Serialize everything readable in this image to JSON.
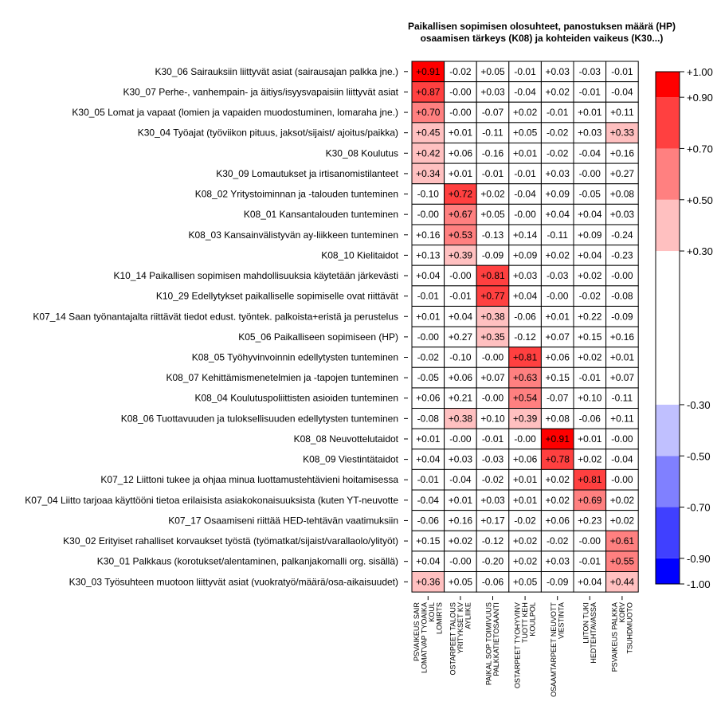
{
  "chart_data": {
    "type": "heatmap",
    "title": [
      "Paikallisen sopimisen olosuhteet, panostuksen määrä (HP)",
      "osaamisen tärkeys (K08) ja kohteiden vaikeus (K30...)"
    ],
    "rows": [
      "K30_06 Sairauksiin liittyvät asiat (sairausajan palkka jne.)",
      "K30_07 Perhe-, vanhempain- ja äitiys/isyysvapaisiin liittyvät asiat",
      "K30_05 Lomat ja vapaat (lomien ja vapaiden muodostuminen, lomaraha jne.)",
      "K30_04 Työajat (työviikon pituus, jaksot/sijaist/ ajoitus/paikka)",
      "K30_08 Koulutus",
      "K30_09 Lomautukset ja irtisanomistilanteet",
      "K08_02 Yritystoiminnan ja -talouden tunteminen",
      "K08_01 Kansantalouden tunteminen",
      "K08_03 Kansainvälistyvän ay-liikkeen tunteminen",
      "K08_10 Kielitaidot",
      "K10_14 Paikallisen sopimisen mahdollisuuksia käytetään järkevästi",
      "K10_29 Edellytykset paikalliselle sopimiselle ovat riittävät",
      "K07_14 Saan työnantajalta riittävät tiedot edust. työntek. palkoista+eristä ja perustelus",
      "K05_06 Paikalliseen sopimiseen (HP)",
      "K08_05 Työhyvinvoinnin edellytysten tunteminen",
      "K08_07 Kehittämismenetelmien ja -tapojen tunteminen",
      "K08_04 Koulutuspoliittisten asioiden tunteminen",
      "K08_06 Tuottavuuden ja tuloksellisuuden edellytysten tunteminen",
      "K08_08 Neuvottelutaidot",
      "K08_09 Viestintätaidot",
      "K07_12 Liittoni tukee ja ohjaa minua luottamustehtävieni hoitamisessa",
      "K07_04 Liitto tarjoaa käyttööni tietoa erilaisista asiakokonaisuuksista (kuten YT-neuvotte",
      "K07_17 Osaamiseni riittää HED-tehtävän vaatimuksiin",
      "K30_02 Erityiset rahalliset korvaukset työstä (työmatkat/sijaist/varallaolo/ylityöt)",
      "K30_01 Palkkaus (korotukset/alentaminen, palkanjakomalli org. sisällä)",
      "K30_03 Työsuhteen muotoon liittyvät asiat (vuokratyö/määrä/osa-aikaisuudet)"
    ],
    "columns": [
      [
        "PSVAIKEUS SAIR",
        "LOMATVAP TYOAIKA",
        "KOUL",
        "LOMIRTS"
      ],
      [
        "OSTARPEET TALOUS",
        "YRITYKSET KV",
        "AYLIIKE"
      ],
      [
        "PAIKAL SOP TOIMIVUUS",
        "PALKKATIETOSAANTI"
      ],
      [
        "OSTARPEET TYOHYVINV",
        "TUOTT KEH",
        "KOULPOL"
      ],
      [
        "OSAAMTARPEET NEUVOTT",
        "VIESTINTA"
      ],
      [
        "LIITON TUKI",
        "HEDTEHTAVASSA"
      ],
      [
        "PSVAIKEUS PALKKA",
        "KORV",
        "TSUHDMUOTO"
      ]
    ],
    "values": [
      [
        0.91,
        -0.02,
        0.05,
        -0.01,
        0.03,
        -0.03,
        -0.01
      ],
      [
        0.87,
        -0.0,
        0.03,
        -0.04,
        0.02,
        -0.01,
        -0.04
      ],
      [
        0.7,
        -0.0,
        -0.07,
        0.02,
        -0.01,
        0.01,
        0.11
      ],
      [
        0.45,
        0.01,
        -0.11,
        0.05,
        -0.02,
        0.03,
        0.33
      ],
      [
        0.42,
        0.06,
        -0.16,
        0.01,
        -0.02,
        -0.04,
        0.16
      ],
      [
        0.34,
        0.01,
        -0.01,
        -0.01,
        0.03,
        -0.0,
        0.27
      ],
      [
        -0.1,
        0.72,
        0.02,
        -0.04,
        0.09,
        -0.05,
        0.08
      ],
      [
        0.0,
        0.67,
        0.05,
        0.0,
        0.04,
        0.04,
        0.03
      ],
      [
        0.16,
        0.53,
        -0.13,
        0.14,
        -0.11,
        0.09,
        -0.24
      ],
      [
        0.13,
        0.39,
        -0.09,
        0.09,
        0.02,
        0.04,
        -0.23
      ],
      [
        0.04,
        -0.0,
        0.81,
        0.03,
        -0.03,
        0.02,
        0.0
      ],
      [
        -0.01,
        -0.01,
        0.77,
        0.04,
        -0.0,
        -0.02,
        -0.08
      ],
      [
        0.01,
        0.04,
        0.38,
        -0.06,
        0.01,
        0.22,
        -0.09
      ],
      [
        -0.0,
        0.27,
        0.35,
        -0.12,
        0.07,
        0.15,
        0.16
      ],
      [
        -0.02,
        -0.1,
        0.0,
        0.81,
        0.06,
        0.02,
        0.01
      ],
      [
        -0.05,
        0.06,
        0.07,
        0.63,
        0.15,
        -0.01,
        0.07
      ],
      [
        0.06,
        0.21,
        -0.0,
        0.54,
        -0.07,
        0.1,
        -0.11
      ],
      [
        -0.08,
        0.38,
        0.1,
        0.39,
        0.08,
        -0.06,
        0.11
      ],
      [
        0.01,
        -0.0,
        -0.01,
        -0.0,
        0.91,
        0.01,
        0.0
      ],
      [
        0.04,
        0.03,
        -0.03,
        0.06,
        0.78,
        0.02,
        -0.04
      ],
      [
        -0.01,
        -0.04,
        -0.02,
        0.01,
        0.02,
        0.81,
        0.0
      ],
      [
        -0.04,
        0.01,
        0.03,
        0.01,
        0.02,
        0.69,
        0.02
      ],
      [
        -0.06,
        0.16,
        0.17,
        -0.02,
        0.06,
        0.23,
        0.02
      ],
      [
        0.15,
        0.02,
        -0.12,
        0.02,
        -0.02,
        0.0,
        0.61
      ],
      [
        0.04,
        0.0,
        -0.2,
        0.02,
        0.03,
        -0.01,
        0.55
      ],
      [
        0.36,
        0.05,
        -0.06,
        0.05,
        -0.09,
        0.04,
        0.44
      ]
    ],
    "legend": {
      "placement": "right",
      "breaks": [
        -1.0,
        -0.9,
        -0.7,
        -0.5,
        -0.3,
        0.3,
        0.5,
        0.7,
        0.9,
        1.0
      ],
      "labels": [
        "-1.00",
        "-0.90",
        "-0.70",
        "-0.50",
        "-0.30",
        "+0.30",
        "+0.50",
        "+0.70",
        "+0.90",
        "+1.00"
      ],
      "colors": [
        "#0000FF",
        "#4040FF",
        "#8080FF",
        "#C0C0FF",
        "#FFFFFF",
        "#FFC0C0",
        "#FF8080",
        "#FF4040",
        "#FF0000"
      ]
    }
  }
}
